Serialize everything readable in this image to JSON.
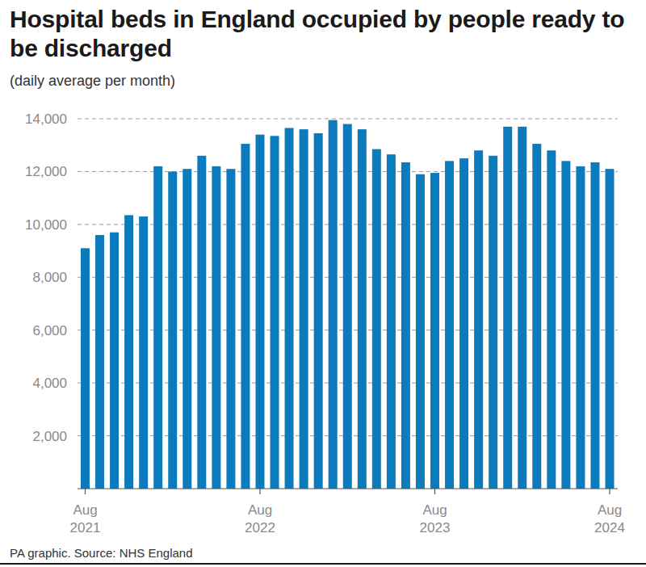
{
  "chart_data": {
    "type": "bar",
    "title": "Hospital beds in England occupied by people ready to be discharged",
    "subtitle": "(daily average per month)",
    "source": "PA graphic. Source: NHS England",
    "categories": [
      "Aug 2021",
      null,
      null,
      null,
      null,
      null,
      null,
      null,
      null,
      null,
      null,
      null,
      "Aug 2022",
      null,
      null,
      null,
      null,
      null,
      null,
      null,
      null,
      null,
      null,
      null,
      "Aug 2023",
      null,
      null,
      null,
      null,
      null,
      null,
      null,
      null,
      null,
      null,
      null,
      "Aug 2024"
    ],
    "values": [
      9100,
      9600,
      9700,
      10350,
      10300,
      12200,
      12000,
      12100,
      12600,
      12200,
      12100,
      13050,
      13400,
      13350,
      13650,
      13600,
      13450,
      13950,
      13800,
      13600,
      12850,
      12650,
      12350,
      11900,
      11950,
      12400,
      12500,
      12800,
      12600,
      13700,
      13700,
      13050,
      12800,
      12400,
      12200,
      12350,
      12100
    ],
    "color": "#0c7bbd",
    "ylim": [
      0,
      14000
    ],
    "yticks": [
      {
        "value": 2000,
        "label": "2,000"
      },
      {
        "value": 4000,
        "label": "4,000"
      },
      {
        "value": 6000,
        "label": "6,000"
      },
      {
        "value": 8000,
        "label": "8,000"
      },
      {
        "value": 10000,
        "label": "10,000"
      },
      {
        "value": 12000,
        "label": "12,000"
      },
      {
        "value": 14000,
        "label": "14,000"
      }
    ],
    "grid": true
  }
}
